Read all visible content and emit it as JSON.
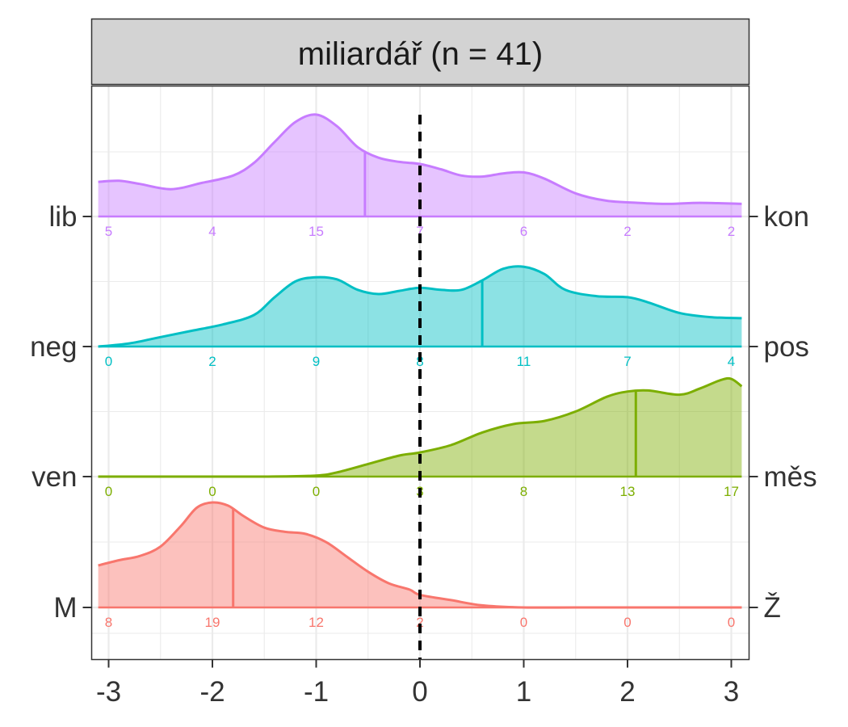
{
  "chart_data": {
    "type": "ridgeline-density",
    "title": "miliardář (n = 41)",
    "xlabel": "",
    "ylabel": "",
    "xlim": [
      -3.1,
      3.1
    ],
    "x_ticks": [
      "-3",
      "-2",
      "-1",
      "0",
      "1",
      "2",
      "3"
    ],
    "x_tick_values": [
      -3,
      -2,
      -1,
      0,
      1,
      2,
      3
    ],
    "reference_line": {
      "x": 0,
      "style": "dashed",
      "color": "#000000"
    },
    "grid": true,
    "legend": "none",
    "series": [
      {
        "left_label": "M",
        "right_label": "Ž",
        "color": "#F8766D",
        "mean": -1.8,
        "counts": [
          8,
          19,
          12,
          2,
          0,
          0,
          0
        ],
        "count_x": [
          -3,
          -2,
          -1,
          0,
          1,
          2,
          3
        ],
        "density": {
          "x": [
            -3.1,
            -2.9,
            -2.7,
            -2.5,
            -2.3,
            -2.15,
            -2.0,
            -1.85,
            -1.7,
            -1.5,
            -1.3,
            -1.1,
            -0.9,
            -0.7,
            -0.5,
            -0.3,
            -0.1,
            0.0,
            0.3,
            0.6,
            1.0,
            1.5,
            2.0,
            2.5,
            3.1
          ],
          "y": [
            0.4,
            0.45,
            0.49,
            0.58,
            0.78,
            0.95,
            1.0,
            0.97,
            0.87,
            0.76,
            0.72,
            0.7,
            0.62,
            0.48,
            0.34,
            0.23,
            0.17,
            0.12,
            0.07,
            0.02,
            0.0,
            0.0,
            0.0,
            0.0,
            0.0
          ]
        }
      },
      {
        "left_label": "ven",
        "right_label": "měs",
        "color": "#7CAE00",
        "mean": 2.08,
        "counts": [
          0,
          0,
          0,
          3,
          8,
          13,
          17
        ],
        "count_x": [
          -3,
          -2,
          -1,
          0,
          1,
          2,
          3
        ],
        "density": {
          "x": [
            -3.1,
            -2.5,
            -2.0,
            -1.5,
            -1.0,
            -0.8,
            -0.5,
            -0.2,
            0.0,
            0.3,
            0.6,
            0.9,
            1.2,
            1.5,
            1.8,
            2.0,
            2.2,
            2.5,
            2.7,
            2.9,
            3.0,
            3.1
          ],
          "y": [
            0.0,
            0.0,
            0.0,
            0.0,
            0.01,
            0.04,
            0.12,
            0.2,
            0.23,
            0.3,
            0.42,
            0.5,
            0.53,
            0.62,
            0.76,
            0.81,
            0.82,
            0.78,
            0.84,
            0.92,
            0.93,
            0.86
          ]
        }
      },
      {
        "left_label": "neg",
        "right_label": "pos",
        "color": "#00BFC4",
        "mean": 0.6,
        "counts": [
          0,
          2,
          9,
          8,
          11,
          7,
          4
        ],
        "count_x": [
          -3,
          -2,
          -1,
          0,
          1,
          2,
          3
        ],
        "density": {
          "x": [
            -3.1,
            -2.8,
            -2.5,
            -2.2,
            -1.9,
            -1.6,
            -1.4,
            -1.2,
            -1.0,
            -0.8,
            -0.6,
            -0.4,
            -0.2,
            0.0,
            0.2,
            0.4,
            0.6,
            0.8,
            1.0,
            1.2,
            1.4,
            1.7,
            2.0,
            2.2,
            2.5,
            2.8,
            3.1
          ],
          "y": [
            0.0,
            0.03,
            0.09,
            0.15,
            0.21,
            0.3,
            0.47,
            0.62,
            0.66,
            0.64,
            0.54,
            0.5,
            0.53,
            0.56,
            0.54,
            0.54,
            0.63,
            0.74,
            0.76,
            0.69,
            0.54,
            0.48,
            0.47,
            0.42,
            0.32,
            0.28,
            0.27
          ]
        }
      },
      {
        "left_label": "lib",
        "right_label": "kon",
        "color": "#C77CFF",
        "mean": -0.53,
        "counts": [
          5,
          4,
          15,
          7,
          6,
          2,
          2
        ],
        "count_x": [
          -3,
          -2,
          -1,
          0,
          1,
          2,
          3
        ],
        "density": {
          "x": [
            -3.1,
            -2.9,
            -2.7,
            -2.4,
            -2.1,
            -1.8,
            -1.6,
            -1.4,
            -1.2,
            -1.0,
            -0.8,
            -0.6,
            -0.4,
            -0.2,
            0.0,
            0.2,
            0.4,
            0.6,
            0.8,
            1.0,
            1.2,
            1.5,
            1.8,
            2.1,
            2.4,
            2.7,
            3.1
          ],
          "y": [
            0.33,
            0.34,
            0.31,
            0.26,
            0.32,
            0.39,
            0.51,
            0.71,
            0.9,
            0.97,
            0.86,
            0.66,
            0.56,
            0.52,
            0.5,
            0.45,
            0.39,
            0.38,
            0.41,
            0.42,
            0.36,
            0.22,
            0.15,
            0.13,
            0.12,
            0.13,
            0.12
          ]
        }
      }
    ]
  }
}
